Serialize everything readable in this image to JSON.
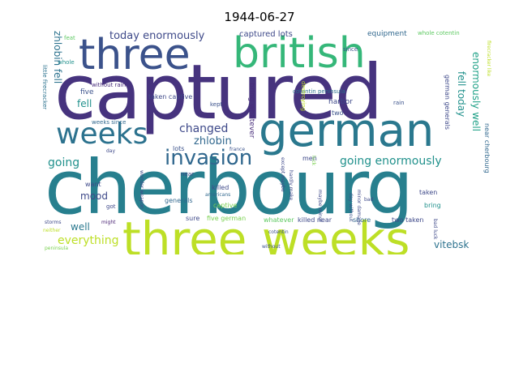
{
  "title": "1944-06-27",
  "words": [
    {
      "text": "captured",
      "color": "#46337e"
    },
    {
      "text": "cherbourg",
      "color": "#277f8e"
    },
    {
      "text": "three weeks",
      "color": "#bddf26"
    },
    {
      "text": "german",
      "color": "#2a788e"
    },
    {
      "text": "three",
      "color": "#3b528b"
    },
    {
      "text": "british",
      "color": "#35b779"
    },
    {
      "text": "weeks",
      "color": "#2c728e"
    },
    {
      "text": "invasion",
      "color": "#31688e"
    },
    {
      "text": "changed",
      "color": "#3e4989"
    },
    {
      "text": "zhlobin",
      "color": "#31688e"
    },
    {
      "text": "going enormously",
      "color": "#21918c"
    },
    {
      "text": "going",
      "color": "#21918c"
    },
    {
      "text": "today enormously",
      "color": "#3e4989"
    },
    {
      "text": "captured lots",
      "color": "#3e4989"
    },
    {
      "text": "equipment",
      "color": "#31688e"
    },
    {
      "text": "whole cotentin",
      "color": "#5ec962"
    },
    {
      "text": "feat",
      "color": "#5ec962"
    },
    {
      "text": "whole",
      "color": "#21918c"
    },
    {
      "text": "since",
      "color": "#3b528b"
    },
    {
      "text": "without rain",
      "color": "#472c7a"
    },
    {
      "text": "cotentin peninsula",
      "color": "#2c728e"
    },
    {
      "text": "five",
      "color": "#3b528b"
    },
    {
      "text": "fell",
      "color": "#21918c"
    },
    {
      "text": "zhlobin fell",
      "color": "#2c728e"
    },
    {
      "text": "little firecracker",
      "color": "#2c728e"
    },
    {
      "text": "weeks since",
      "color": "#31688e"
    },
    {
      "text": "taken captive",
      "color": "#3e4989"
    },
    {
      "text": "bring whatever",
      "color": "#472c7a"
    },
    {
      "text": "destroying",
      "color": "#bddf26"
    },
    {
      "text": "kept",
      "color": "#3b528b"
    },
    {
      "text": "harbor",
      "color": "#3e4989"
    },
    {
      "text": "rain",
      "color": "#3b528b"
    },
    {
      "text": "two",
      "color": "#3b528b"
    },
    {
      "text": "fell today",
      "color": "#21918c"
    },
    {
      "text": "enormously well",
      "color": "#1fa187"
    },
    {
      "text": "german generals",
      "color": "#3e4989"
    },
    {
      "text": "near cherbourg",
      "color": "#31688e"
    },
    {
      "text": "firecracker like",
      "color": "#bddf26"
    },
    {
      "text": "mood",
      "color": "#3e4989"
    },
    {
      "text": "want",
      "color": "#3e4989"
    },
    {
      "text": "well",
      "color": "#2a788e"
    },
    {
      "text": "everything",
      "color": "#bddf26"
    },
    {
      "text": "lots",
      "color": "#3b528b"
    },
    {
      "text": "near",
      "color": "#3e4989"
    },
    {
      "text": "killed",
      "color": "#3e4989"
    },
    {
      "text": "generals",
      "color": "#31688e"
    },
    {
      "text": "captive",
      "color": "#7ad151"
    },
    {
      "text": "sure",
      "color": "#3e4989"
    },
    {
      "text": "five german",
      "color": "#7ad151"
    },
    {
      "text": "whatever",
      "color": "#5ec962"
    },
    {
      "text": "killed near",
      "color": "#3e4989"
    },
    {
      "text": "shore",
      "color": "#31688e"
    },
    {
      "text": "two taken",
      "color": "#3e4989"
    },
    {
      "text": "taken",
      "color": "#3e4989"
    },
    {
      "text": "bring",
      "color": "#21918c"
    },
    {
      "text": "vitebsk",
      "color": "#2c728e"
    },
    {
      "text": "men",
      "color": "#3e4989"
    },
    {
      "text": "france",
      "color": "#3b528b"
    },
    {
      "text": "day",
      "color": "#3e4989"
    },
    {
      "text": "got",
      "color": "#3e4989"
    },
    {
      "text": "wonder weapon",
      "color": "#3e4989"
    },
    {
      "text": "americans",
      "color": "#31688e"
    },
    {
      "text": "might",
      "color": "#482173"
    },
    {
      "text": "storms",
      "color": "#3e4989"
    },
    {
      "text": "neither",
      "color": "#bddf26"
    },
    {
      "text": "peninsula",
      "color": "#7ad151"
    },
    {
      "text": "cotentin",
      "color": "#3b528b"
    },
    {
      "text": "without",
      "color": "#3b528b"
    },
    {
      "text": "except maybe",
      "color": "#3e4989"
    },
    {
      "text": "hardly make",
      "color": "#3e4989"
    },
    {
      "text": "maybe minor",
      "color": "#3e4989"
    },
    {
      "text": "luck",
      "color": "#7ad151"
    },
    {
      "text": "day without",
      "color": "#3b528b"
    },
    {
      "text": "minor damage",
      "color": "#3e4989"
    },
    {
      "text": "bad",
      "color": "#3e4989"
    },
    {
      "text": "bad luck",
      "color": "#3e4989"
    }
  ]
}
